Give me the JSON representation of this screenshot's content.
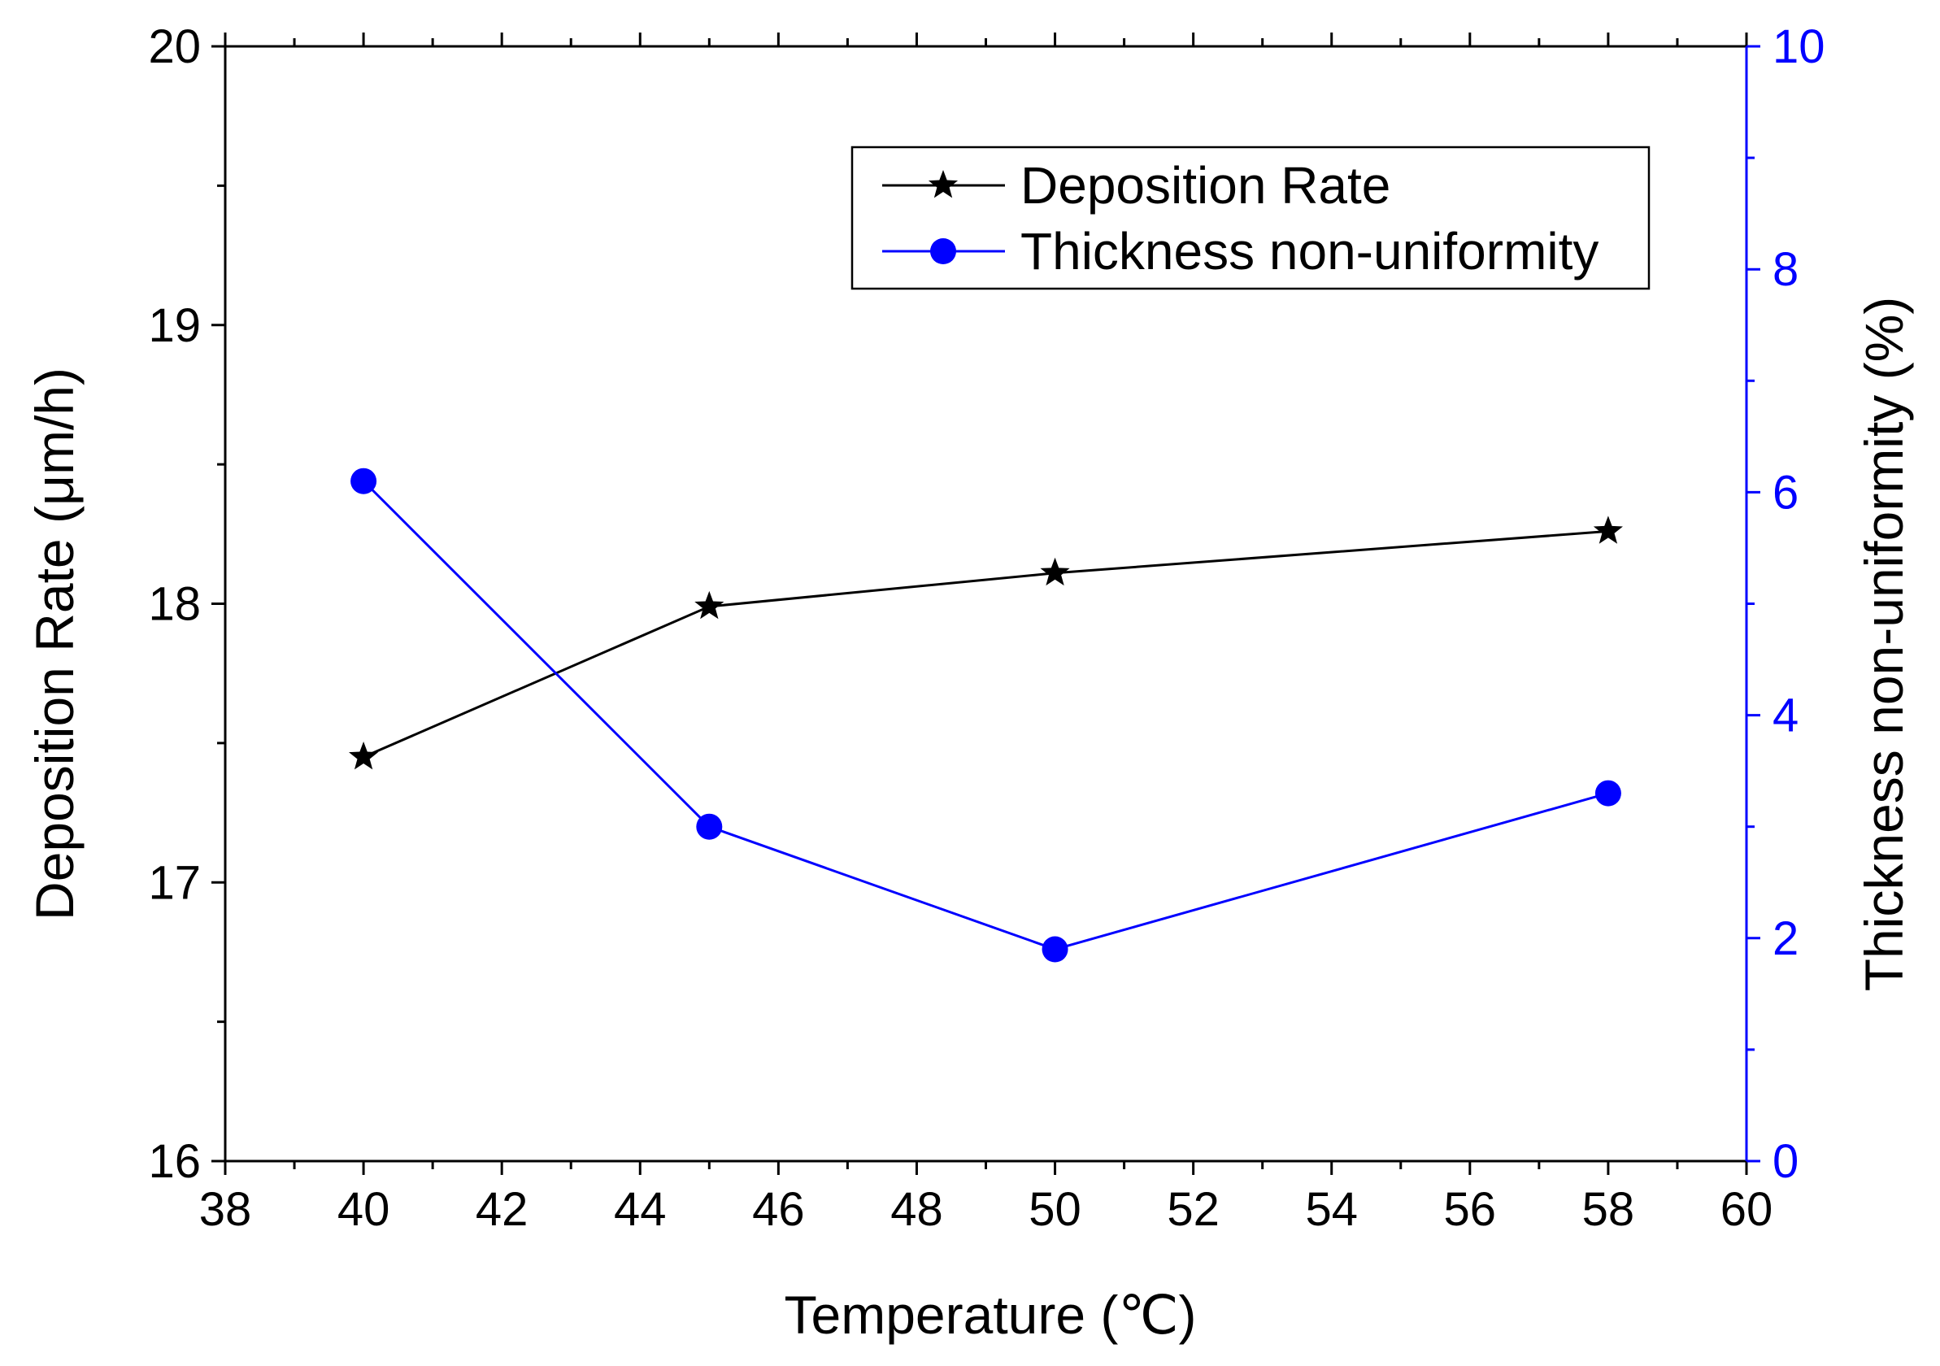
{
  "chart_data": {
    "type": "line",
    "title": "",
    "xlabel": "Temperature (℃)",
    "ylabel": "Deposition Rate (μm/h)",
    "y2label": "Thickness non-uniformity (%)",
    "xlim": [
      38,
      60
    ],
    "ylim": [
      16,
      20
    ],
    "y2lim": [
      0,
      10
    ],
    "grid": false,
    "legend_position": "top-right",
    "x_ticks": [
      "38",
      "40",
      "42",
      "44",
      "46",
      "48",
      "50",
      "52",
      "54",
      "56",
      "58",
      "60"
    ],
    "y_ticks": [
      "16",
      "17",
      "18",
      "19",
      "20"
    ],
    "y2_ticks": [
      "0",
      "2",
      "4",
      "6",
      "8",
      "10"
    ],
    "x": [
      40,
      45,
      50,
      58
    ],
    "series": [
      {
        "name": "Deposition Rate",
        "axis": "left",
        "marker": "star",
        "color": "#000000",
        "values": [
          17.45,
          17.99,
          18.11,
          18.26
        ]
      },
      {
        "name": "Thickness non-uniformity",
        "axis": "right",
        "marker": "circle",
        "color": "#0000ff",
        "values": [
          6.1,
          3.0,
          1.9,
          3.3
        ]
      }
    ]
  }
}
